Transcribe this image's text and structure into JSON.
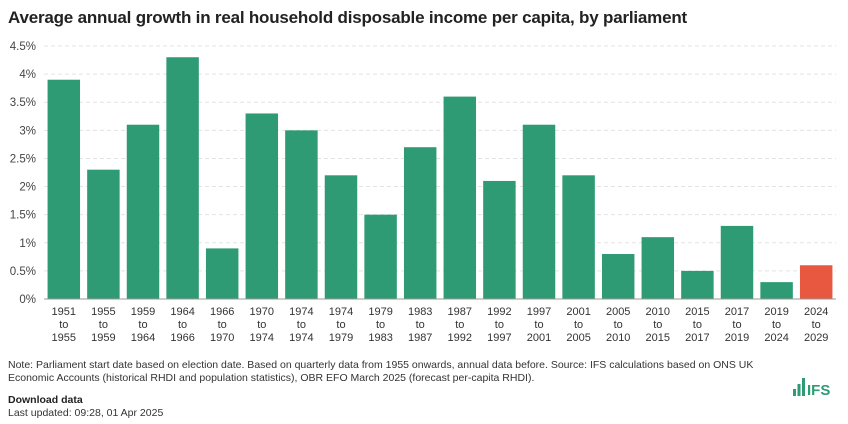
{
  "chart_data": {
    "type": "bar",
    "title": "Average annual growth in real household disposable income per capita, by parliament",
    "categories": [
      [
        "1951",
        "to",
        "1955"
      ],
      [
        "1955",
        "to",
        "1959"
      ],
      [
        "1959",
        "to",
        "1964"
      ],
      [
        "1964",
        "to",
        "1966"
      ],
      [
        "1966",
        "to",
        "1970"
      ],
      [
        "1970",
        "to",
        "1974"
      ],
      [
        "1974",
        "to",
        "1974"
      ],
      [
        "1974",
        "to",
        "1979"
      ],
      [
        "1979",
        "to",
        "1983"
      ],
      [
        "1983",
        "to",
        "1987"
      ],
      [
        "1987",
        "to",
        "1992"
      ],
      [
        "1992",
        "to",
        "1997"
      ],
      [
        "1997",
        "to",
        "2001"
      ],
      [
        "2001",
        "to",
        "2005"
      ],
      [
        "2005",
        "to",
        "2010"
      ],
      [
        "2010",
        "to",
        "2015"
      ],
      [
        "2015",
        "to",
        "2017"
      ],
      [
        "2017",
        "to",
        "2019"
      ],
      [
        "2019",
        "to",
        "2024"
      ],
      [
        "2024",
        "to",
        "2029"
      ]
    ],
    "values": [
      3.9,
      2.3,
      3.1,
      4.3,
      0.9,
      3.3,
      3.0,
      2.2,
      1.5,
      2.7,
      3.6,
      2.1,
      3.1,
      2.2,
      0.8,
      1.1,
      0.5,
      1.3,
      0.3,
      0.6
    ],
    "ylim": [
      0,
      4.5
    ],
    "yticks": [
      "0%",
      "0.5%",
      "1%",
      "1.5%",
      "2%",
      "2.5%",
      "3%",
      "3.5%",
      "4%",
      "4.5%"
    ],
    "grid": true,
    "colors": {
      "default": "#2e9b74",
      "highlight": "#e8573f"
    },
    "highlight_index": 19
  },
  "footer": {
    "note": "Note: Parliament start date based on election date. Based on quarterly data from 1955 onwards, annual data before. Source: IFS calculations based on ONS UK Economic Accounts (historical RHDI and population statistics), OBR EFO March 2025 (forecast per-capita RHDI).",
    "download": "Download data",
    "updated": "Last updated: 09:28, 01 Apr 2025",
    "logo": "IFS"
  }
}
